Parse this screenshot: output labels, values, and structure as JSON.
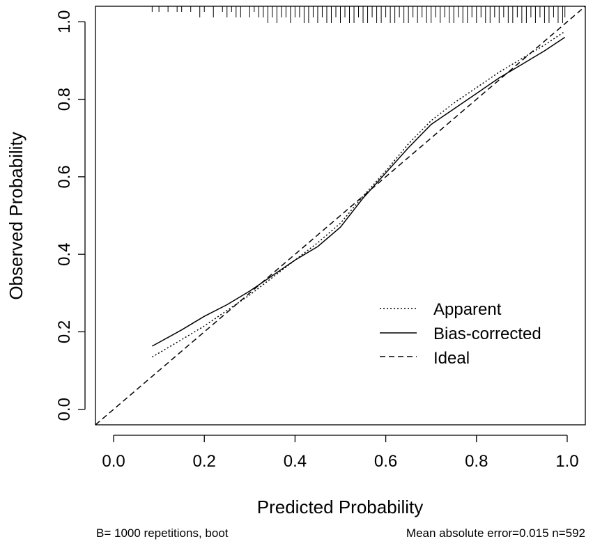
{
  "chart_data": {
    "type": "line",
    "xlabel": "Predicted Probability",
    "ylabel": "Observed Probability",
    "xlim": [
      -0.04,
      1.04
    ],
    "ylim": [
      -0.04,
      1.04
    ],
    "x_ticks": [
      "0.0",
      "0.2",
      "0.4",
      "0.6",
      "0.8",
      "1.0"
    ],
    "y_ticks": [
      "0.0",
      "0.2",
      "0.4",
      "0.6",
      "0.8",
      "1.0"
    ],
    "legend_position": "bottom-right",
    "series": [
      {
        "name": "Apparent",
        "style": "dotted",
        "x": [
          0.085,
          0.15,
          0.2,
          0.25,
          0.3,
          0.35,
          0.4,
          0.45,
          0.5,
          0.55,
          0.6,
          0.65,
          0.7,
          0.75,
          0.8,
          0.85,
          0.9,
          0.95,
          0.995
        ],
        "y": [
          0.135,
          0.18,
          0.215,
          0.255,
          0.295,
          0.34,
          0.385,
          0.43,
          0.48,
          0.55,
          0.615,
          0.685,
          0.745,
          0.79,
          0.83,
          0.87,
          0.905,
          0.94,
          0.975
        ]
      },
      {
        "name": "Bias-corrected",
        "style": "solid",
        "x": [
          0.085,
          0.15,
          0.2,
          0.25,
          0.3,
          0.35,
          0.4,
          0.45,
          0.5,
          0.55,
          0.6,
          0.65,
          0.7,
          0.75,
          0.8,
          0.85,
          0.9,
          0.95,
          0.995
        ],
        "y": [
          0.163,
          0.205,
          0.24,
          0.27,
          0.305,
          0.345,
          0.385,
          0.42,
          0.47,
          0.545,
          0.61,
          0.675,
          0.735,
          0.775,
          0.815,
          0.855,
          0.89,
          0.925,
          0.96
        ]
      },
      {
        "name": "Ideal",
        "style": "dashed",
        "x": [
          -0.04,
          1.04
        ],
        "y": [
          -0.04,
          1.04
        ]
      }
    ],
    "rug_x": [
      0.085,
      0.1,
      0.12,
      0.14,
      0.15,
      0.17,
      0.19,
      0.2,
      0.22,
      0.24,
      0.25,
      0.26,
      0.27,
      0.28,
      0.3,
      0.31,
      0.32,
      0.33,
      0.34,
      0.35,
      0.36,
      0.37,
      0.38,
      0.39,
      0.4,
      0.41,
      0.42,
      0.43,
      0.44,
      0.45,
      0.46,
      0.47,
      0.48,
      0.49,
      0.5,
      0.51,
      0.52,
      0.53,
      0.54,
      0.55,
      0.56,
      0.57,
      0.58,
      0.59,
      0.6,
      0.61,
      0.62,
      0.63,
      0.64,
      0.65,
      0.66,
      0.67,
      0.68,
      0.69,
      0.7,
      0.71,
      0.72,
      0.73,
      0.74,
      0.75,
      0.76,
      0.77,
      0.78,
      0.79,
      0.8,
      0.81,
      0.82,
      0.83,
      0.84,
      0.85,
      0.86,
      0.87,
      0.88,
      0.89,
      0.9,
      0.91,
      0.92,
      0.93,
      0.94,
      0.95,
      0.96,
      0.97,
      0.98,
      0.99,
      0.995
    ],
    "rug_len": [
      1,
      1,
      1,
      1,
      1,
      1,
      2,
      1,
      2,
      1,
      2,
      1,
      2,
      2,
      2,
      1,
      2,
      2,
      3,
      2,
      3,
      2,
      2,
      3,
      2,
      2,
      3,
      3,
      2,
      3,
      2,
      3,
      3,
      2,
      3,
      2,
      3,
      3,
      2,
      3,
      3,
      2,
      3,
      3,
      2,
      3,
      3,
      2,
      3,
      3,
      2,
      3,
      2,
      3,
      3,
      2,
      3,
      2,
      3,
      3,
      2,
      3,
      3,
      2,
      3,
      2,
      3,
      3,
      2,
      3,
      2,
      3,
      3,
      2,
      3,
      3,
      2,
      3,
      2,
      3,
      3,
      2,
      3,
      3,
      2
    ]
  },
  "legend": {
    "items": [
      "Apparent",
      "Bias-corrected",
      "Ideal"
    ]
  },
  "footer": {
    "left": "B= 1000 repetitions, boot",
    "right": "Mean absolute error=0.015 n=592"
  }
}
